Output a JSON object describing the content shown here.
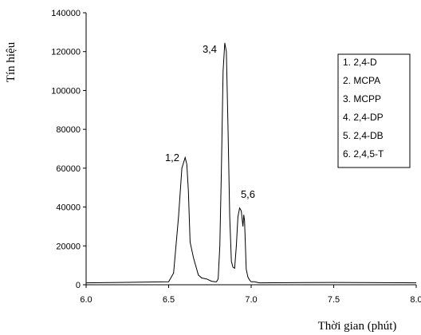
{
  "chart_data": {
    "type": "line",
    "title": "",
    "xlabel": "Thời gian (phút)",
    "ylabel": "Tín hiệu",
    "xlim": [
      6.0,
      8.0
    ],
    "ylim": [
      0,
      140000
    ],
    "x_ticks": [
      "6.0",
      "6.5",
      "7.0",
      "7.5",
      "8.0"
    ],
    "y_ticks": [
      "0",
      "20000",
      "40000",
      "60000",
      "80000",
      "100000",
      "120000",
      "140000"
    ],
    "grid": false,
    "series": [
      {
        "x": [
          6.0,
          6.2,
          6.5,
          6.53,
          6.56,
          6.58,
          6.6,
          6.61,
          6.62,
          6.63,
          6.64,
          6.65,
          6.66,
          6.67,
          6.68,
          6.7,
          6.73,
          6.76,
          6.78,
          6.79,
          6.8,
          6.81,
          6.82,
          6.83,
          6.84,
          6.85,
          6.86,
          6.87,
          6.88,
          6.89,
          6.9,
          6.91,
          6.92,
          6.93,
          6.94,
          6.95,
          6.955,
          6.96,
          6.965,
          6.97,
          6.98,
          6.99,
          7.0,
          7.02,
          7.05,
          7.5,
          8.0
        ],
        "y": [
          1000,
          1200,
          1500,
          6000,
          35000,
          60000,
          65500,
          62000,
          48000,
          22000,
          18000,
          14000,
          11000,
          8000,
          5000,
          3500,
          3000,
          1800,
          1500,
          1500,
          3000,
          20000,
          60000,
          110000,
          124500,
          120000,
          80000,
          35000,
          12000,
          9000,
          8500,
          20000,
          35000,
          39500,
          38000,
          30000,
          36000,
          33000,
          20000,
          8000,
          4000,
          2500,
          1500,
          1500,
          1000,
          1200,
          1000
        ]
      }
    ],
    "annotations": [
      "1,2",
      "3,4",
      "5,6"
    ],
    "legend": {
      "placement": "top-right",
      "items": [
        "1. 2,4-D",
        "2. MCPA",
        "3. MCPP",
        "4. 2,4-DP",
        "5. 2,4-DB",
        "6. 2,4,5-T"
      ]
    }
  }
}
